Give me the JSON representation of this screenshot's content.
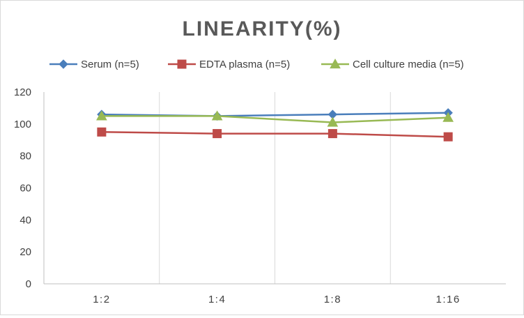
{
  "chart_data": {
    "type": "line",
    "title": "LINEARITY(%)",
    "xlabel": "",
    "ylabel": "",
    "categories": [
      "1:2",
      "1:4",
      "1:8",
      "1:16"
    ],
    "ylim": [
      0,
      120
    ],
    "yticks": [
      0,
      20,
      40,
      60,
      80,
      100,
      120
    ],
    "grid": {
      "vertical": true,
      "horizontal": false
    },
    "legend_position": "top",
    "series": [
      {
        "name": "Serum (n=5)",
        "values": [
          106,
          105,
          106,
          107
        ],
        "color": "#4a7ebb",
        "marker": "diamond"
      },
      {
        "name": "EDTA plasma (n=5)",
        "values": [
          95,
          94,
          94,
          92
        ],
        "color": "#be4b48",
        "marker": "square"
      },
      {
        "name": "Cell culture media (n=5)",
        "values": [
          105,
          105,
          101,
          104
        ],
        "color": "#98b954",
        "marker": "triangle"
      }
    ]
  }
}
